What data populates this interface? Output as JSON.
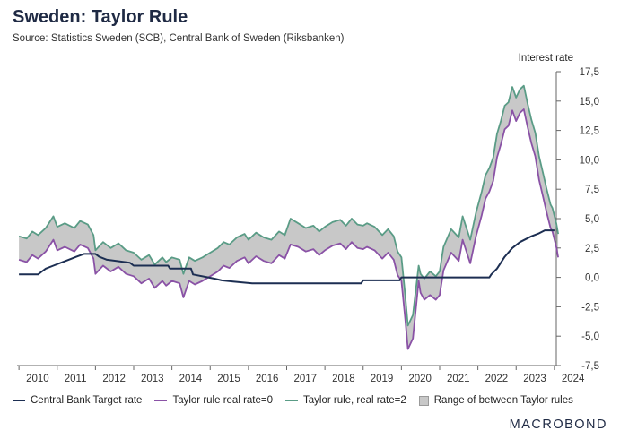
{
  "header": {
    "title": "Sweden: Taylor Rule",
    "subtitle": "Source: Statistics Sweden (SCB), Central Bank of Sweden (Riksbanken)"
  },
  "footer": {
    "brand": "MACROBOND"
  },
  "colors": {
    "cb": "#1c2e52",
    "taylor0": "#8a52a6",
    "taylor2": "#5a9c86",
    "range": "#c8c8c8"
  },
  "chart_data": {
    "type": "line",
    "title": "Sweden: Taylor Rule",
    "subtitle": "Source: Statistics Sweden (SCB), Central Bank of Sweden (Riksbanken)",
    "ylabel": "Interest rate",
    "xlabel": "",
    "x_ticks": [
      "2010",
      "2011",
      "2012",
      "2013",
      "2014",
      "2015",
      "2016",
      "2017",
      "2018",
      "2019",
      "2020",
      "2021",
      "2022",
      "2023",
      "2024"
    ],
    "y_ticks": [
      "17,5",
      "15,0",
      "12,5",
      "10,0",
      "7,5",
      "5,0",
      "2,5",
      "0,0",
      "-2,5",
      "-5,0",
      "-7,5"
    ],
    "ylim": [
      -7.5,
      17.5
    ],
    "xlim": [
      2009.95,
      2024.05
    ],
    "grid": false,
    "y_axis_side": "right",
    "legend_position": "bottom",
    "legend": [
      "Central Bank Target rate",
      "Taylor rule real rate=0",
      "Taylor rule, real rate=2",
      "Range of between Taylor rules"
    ],
    "series": [
      {
        "name": "Central Bank Target rate",
        "points": [
          [
            2010.0,
            0.25
          ],
          [
            2010.5,
            0.25
          ],
          [
            2010.6,
            0.5
          ],
          [
            2010.7,
            0.75
          ],
          [
            2010.9,
            1.0
          ],
          [
            2011.1,
            1.25
          ],
          [
            2011.3,
            1.5
          ],
          [
            2011.5,
            1.75
          ],
          [
            2011.7,
            2.0
          ],
          [
            2012.0,
            2.0
          ],
          [
            2012.1,
            1.75
          ],
          [
            2012.3,
            1.5
          ],
          [
            2012.9,
            1.25
          ],
          [
            2013.0,
            1.0
          ],
          [
            2013.9,
            1.0
          ],
          [
            2013.95,
            0.75
          ],
          [
            2014.5,
            0.75
          ],
          [
            2014.55,
            0.25
          ],
          [
            2014.95,
            0.0
          ],
          [
            2015.1,
            -0.1
          ],
          [
            2015.3,
            -0.25
          ],
          [
            2015.6,
            -0.35
          ],
          [
            2016.1,
            -0.5
          ],
          [
            2018.95,
            -0.5
          ],
          [
            2019.0,
            -0.25
          ],
          [
            2019.95,
            -0.25
          ],
          [
            2020.0,
            0.0
          ],
          [
            2022.3,
            0.0
          ],
          [
            2022.35,
            0.25
          ],
          [
            2022.5,
            0.75
          ],
          [
            2022.7,
            1.75
          ],
          [
            2022.9,
            2.5
          ],
          [
            2023.1,
            3.0
          ],
          [
            2023.4,
            3.5
          ],
          [
            2023.6,
            3.75
          ],
          [
            2023.75,
            4.0
          ],
          [
            2024.0,
            4.0
          ]
        ]
      },
      {
        "name": "Taylor rule real rate=0",
        "points": [
          [
            2010.0,
            1.5
          ],
          [
            2010.2,
            1.3
          ],
          [
            2010.35,
            1.9
          ],
          [
            2010.5,
            1.6
          ],
          [
            2010.7,
            2.2
          ],
          [
            2010.9,
            3.2
          ],
          [
            2011.0,
            2.3
          ],
          [
            2011.2,
            2.6
          ],
          [
            2011.45,
            2.2
          ],
          [
            2011.6,
            2.8
          ],
          [
            2011.8,
            2.5
          ],
          [
            2011.95,
            1.6
          ],
          [
            2012.0,
            0.3
          ],
          [
            2012.2,
            1.0
          ],
          [
            2012.4,
            0.5
          ],
          [
            2012.6,
            0.9
          ],
          [
            2012.8,
            0.3
          ],
          [
            2013.0,
            0.1
          ],
          [
            2013.2,
            -0.5
          ],
          [
            2013.4,
            -0.1
          ],
          [
            2013.55,
            -0.9
          ],
          [
            2013.75,
            -0.3
          ],
          [
            2013.85,
            -0.7
          ],
          [
            2014.0,
            -0.3
          ],
          [
            2014.2,
            -0.5
          ],
          [
            2014.3,
            -1.7
          ],
          [
            2014.45,
            -0.3
          ],
          [
            2014.6,
            -0.6
          ],
          [
            2014.8,
            -0.3
          ],
          [
            2015.0,
            0.1
          ],
          [
            2015.2,
            0.5
          ],
          [
            2015.35,
            1.0
          ],
          [
            2015.5,
            0.8
          ],
          [
            2015.7,
            1.4
          ],
          [
            2015.9,
            1.7
          ],
          [
            2016.0,
            1.2
          ],
          [
            2016.2,
            1.8
          ],
          [
            2016.4,
            1.4
          ],
          [
            2016.6,
            1.2
          ],
          [
            2016.8,
            1.9
          ],
          [
            2016.95,
            1.6
          ],
          [
            2017.1,
            2.8
          ],
          [
            2017.3,
            2.6
          ],
          [
            2017.5,
            2.2
          ],
          [
            2017.7,
            2.4
          ],
          [
            2017.85,
            1.9
          ],
          [
            2018.0,
            2.3
          ],
          [
            2018.2,
            2.7
          ],
          [
            2018.4,
            2.9
          ],
          [
            2018.55,
            2.4
          ],
          [
            2018.7,
            3.0
          ],
          [
            2018.85,
            2.5
          ],
          [
            2019.0,
            2.4
          ],
          [
            2019.1,
            2.6
          ],
          [
            2019.3,
            2.3
          ],
          [
            2019.5,
            1.6
          ],
          [
            2019.65,
            2.1
          ],
          [
            2019.8,
            1.5
          ],
          [
            2019.9,
            0.2
          ],
          [
            2020.0,
            -0.3
          ],
          [
            2020.1,
            -3.5
          ],
          [
            2020.17,
            -6.1
          ],
          [
            2020.3,
            -5.2
          ],
          [
            2020.45,
            -0.3
          ],
          [
            2020.5,
            -1.3
          ],
          [
            2020.6,
            -1.9
          ],
          [
            2020.75,
            -1.5
          ],
          [
            2020.9,
            -1.9
          ],
          [
            2021.0,
            -1.5
          ],
          [
            2021.1,
            0.6
          ],
          [
            2021.3,
            2.1
          ],
          [
            2021.5,
            1.4
          ],
          [
            2021.6,
            3.2
          ],
          [
            2021.8,
            1.2
          ],
          [
            2021.95,
            3.5
          ],
          [
            2022.1,
            5.3
          ],
          [
            2022.2,
            6.7
          ],
          [
            2022.3,
            7.3
          ],
          [
            2022.4,
            8.2
          ],
          [
            2022.5,
            10.2
          ],
          [
            2022.6,
            11.3
          ],
          [
            2022.7,
            12.6
          ],
          [
            2022.8,
            12.9
          ],
          [
            2022.9,
            14.2
          ],
          [
            2023.0,
            13.3
          ],
          [
            2023.1,
            14.0
          ],
          [
            2023.2,
            14.3
          ],
          [
            2023.3,
            12.8
          ],
          [
            2023.4,
            11.4
          ],
          [
            2023.5,
            10.3
          ],
          [
            2023.6,
            8.3
          ],
          [
            2023.7,
            6.9
          ],
          [
            2023.8,
            5.5
          ],
          [
            2023.9,
            4.2
          ],
          [
            2023.95,
            3.9
          ],
          [
            2024.05,
            2.6
          ],
          [
            2024.1,
            1.7
          ]
        ]
      },
      {
        "name": "Taylor rule, real rate=2",
        "points": [
          [
            2010.0,
            3.5
          ],
          [
            2010.2,
            3.3
          ],
          [
            2010.35,
            3.9
          ],
          [
            2010.5,
            3.6
          ],
          [
            2010.7,
            4.2
          ],
          [
            2010.9,
            5.2
          ],
          [
            2011.0,
            4.3
          ],
          [
            2011.2,
            4.6
          ],
          [
            2011.45,
            4.2
          ],
          [
            2011.6,
            4.8
          ],
          [
            2011.8,
            4.5
          ],
          [
            2011.95,
            3.6
          ],
          [
            2012.0,
            2.3
          ],
          [
            2012.2,
            3.0
          ],
          [
            2012.4,
            2.5
          ],
          [
            2012.6,
            2.9
          ],
          [
            2012.8,
            2.3
          ],
          [
            2013.0,
            2.1
          ],
          [
            2013.2,
            1.5
          ],
          [
            2013.4,
            1.9
          ],
          [
            2013.55,
            1.1
          ],
          [
            2013.75,
            1.7
          ],
          [
            2013.85,
            1.3
          ],
          [
            2014.0,
            1.7
          ],
          [
            2014.2,
            1.5
          ],
          [
            2014.3,
            0.3
          ],
          [
            2014.45,
            1.7
          ],
          [
            2014.6,
            1.4
          ],
          [
            2014.8,
            1.7
          ],
          [
            2015.0,
            2.1
          ],
          [
            2015.2,
            2.5
          ],
          [
            2015.35,
            3.0
          ],
          [
            2015.5,
            2.8
          ],
          [
            2015.7,
            3.4
          ],
          [
            2015.9,
            3.7
          ],
          [
            2016.0,
            3.2
          ],
          [
            2016.2,
            3.8
          ],
          [
            2016.4,
            3.4
          ],
          [
            2016.6,
            3.2
          ],
          [
            2016.8,
            3.9
          ],
          [
            2016.95,
            3.6
          ],
          [
            2017.1,
            5.0
          ],
          [
            2017.3,
            4.6
          ],
          [
            2017.5,
            4.2
          ],
          [
            2017.7,
            4.4
          ],
          [
            2017.85,
            3.9
          ],
          [
            2018.0,
            4.3
          ],
          [
            2018.2,
            4.7
          ],
          [
            2018.4,
            4.9
          ],
          [
            2018.55,
            4.4
          ],
          [
            2018.7,
            5.0
          ],
          [
            2018.85,
            4.5
          ],
          [
            2019.0,
            4.4
          ],
          [
            2019.1,
            4.6
          ],
          [
            2019.3,
            4.3
          ],
          [
            2019.5,
            3.6
          ],
          [
            2019.65,
            4.1
          ],
          [
            2019.8,
            3.5
          ],
          [
            2019.9,
            2.2
          ],
          [
            2020.0,
            1.7
          ],
          [
            2020.1,
            -1.5
          ],
          [
            2020.17,
            -4.1
          ],
          [
            2020.3,
            -3.2
          ],
          [
            2020.45,
            1.0
          ],
          [
            2020.5,
            0.3
          ],
          [
            2020.6,
            -0.1
          ],
          [
            2020.75,
            0.5
          ],
          [
            2020.9,
            0.1
          ],
          [
            2021.0,
            0.5
          ],
          [
            2021.1,
            2.6
          ],
          [
            2021.3,
            4.1
          ],
          [
            2021.5,
            3.4
          ],
          [
            2021.6,
            5.2
          ],
          [
            2021.8,
            3.2
          ],
          [
            2021.95,
            5.5
          ],
          [
            2022.1,
            7.3
          ],
          [
            2022.2,
            8.7
          ],
          [
            2022.3,
            9.3
          ],
          [
            2022.4,
            10.2
          ],
          [
            2022.5,
            12.2
          ],
          [
            2022.6,
            13.3
          ],
          [
            2022.7,
            14.6
          ],
          [
            2022.8,
            14.9
          ],
          [
            2022.9,
            16.2
          ],
          [
            2023.0,
            15.3
          ],
          [
            2023.1,
            16.0
          ],
          [
            2023.2,
            16.3
          ],
          [
            2023.3,
            14.8
          ],
          [
            2023.4,
            13.4
          ],
          [
            2023.5,
            12.3
          ],
          [
            2023.6,
            10.3
          ],
          [
            2023.7,
            8.9
          ],
          [
            2023.8,
            7.5
          ],
          [
            2023.9,
            6.2
          ],
          [
            2023.95,
            5.9
          ],
          [
            2024.05,
            4.6
          ],
          [
            2024.1,
            3.7
          ]
        ]
      }
    ]
  }
}
